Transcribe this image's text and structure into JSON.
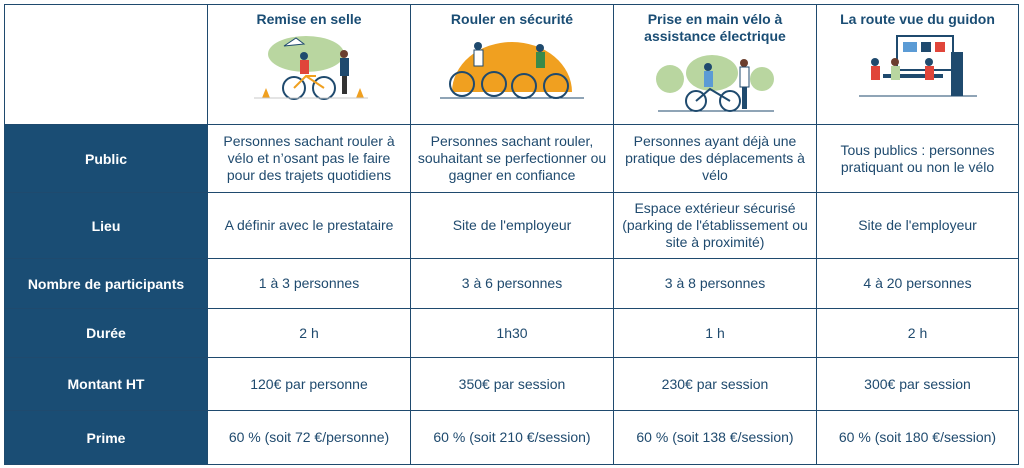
{
  "columns": [
    {
      "title": "Remise en selle",
      "illustration": "cyclists-with-cones-illustration"
    },
    {
      "title": "Rouler en sécurité",
      "illustration": "cyclists-riding-sun-illustration"
    },
    {
      "title": "Prise en main vélo à assistance électrique",
      "illustration": "ebike-handover-illustration"
    },
    {
      "title": "La route vue du guidon",
      "illustration": "classroom-presentation-illustration"
    }
  ],
  "rows": [
    {
      "label": "Public",
      "cells": [
        "Personnes sachant rouler à vélo et n’osant pas le faire pour des trajets quotidiens",
        "Personnes sachant rouler, souhaitant se perfectionner ou gagner en confiance",
        "Personnes ayant déjà une pratique des déplacements à vélo",
        "Tous publics : personnes pratiquant ou non le vélo"
      ]
    },
    {
      "label": "Lieu",
      "cells": [
        "A définir avec le prestataire",
        "Site de l'employeur",
        "Espace extérieur sécurisé (parking de l'établissement ou site à proximité)",
        "Site de l'employeur"
      ]
    },
    {
      "label": "Nombre de participants",
      "cells": [
        "1 à 3 personnes",
        "3 à 6 personnes",
        "3 à 8 personnes",
        "4 à 20 personnes"
      ]
    },
    {
      "label": "Durée",
      "cells": [
        "2 h",
        "1h30",
        "1 h",
        "2 h"
      ]
    },
    {
      "label": "Montant HT",
      "cells": [
        "120€ par personne",
        "350€ par session",
        "230€ par session",
        "300€ par session"
      ]
    },
    {
      "label": "Prime",
      "cells": [
        "60 % (soit 72 €/personne)",
        "60 % (soit 210 €/session)",
        "60 % (soit 138 €/session)",
        "60 % (soit 180 €/session)"
      ]
    }
  ],
  "colors": {
    "header_blue": "#1a4d74",
    "text_blue": "#1f4a6e",
    "orange": "#f0a020",
    "green": "#b9d6a0"
  }
}
